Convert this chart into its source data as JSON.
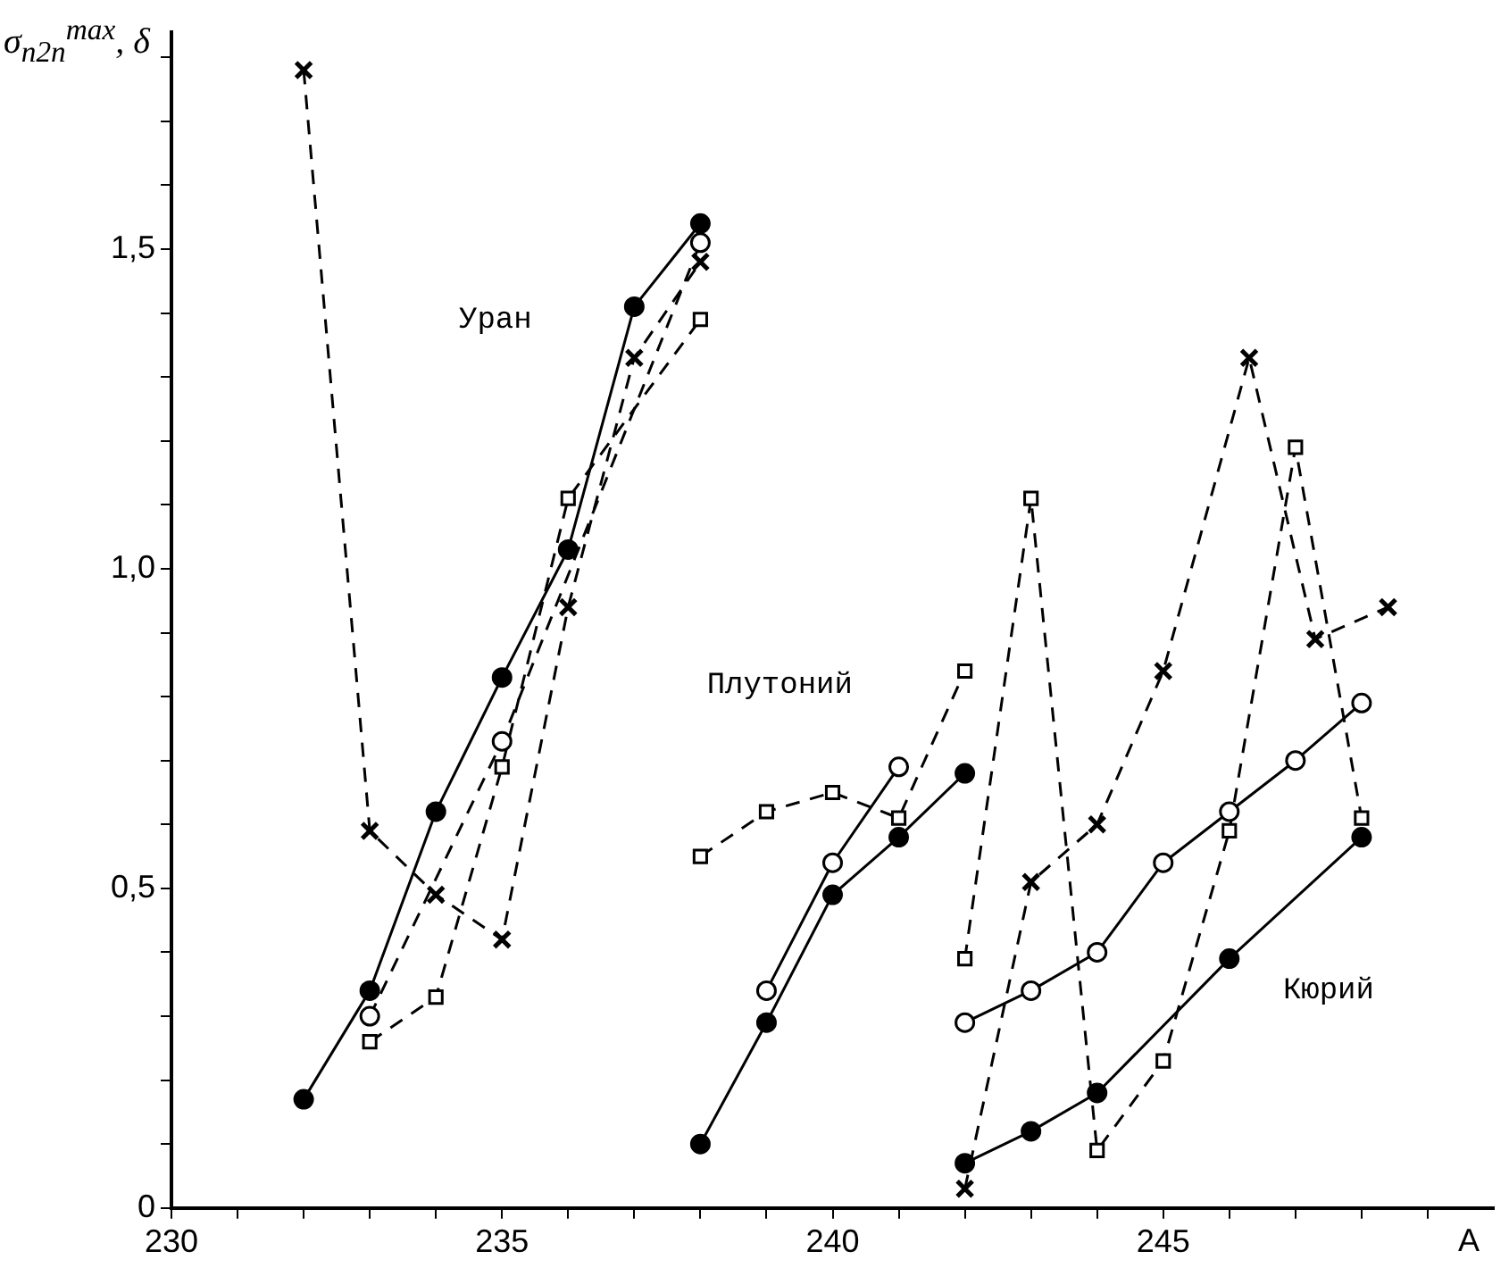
{
  "chart_data": {
    "type": "line",
    "ylabel": "σ$_{n2n}$$^{max}$, δ",
    "xlabel": "A",
    "xlim": [
      230,
      250
    ],
    "ylim": [
      0,
      1.84
    ],
    "xticks": [
      230,
      {
        "value": 231,
        "label": null
      },
      {
        "value": 232,
        "label": null
      },
      {
        "value": 233,
        "label": null
      },
      {
        "value": 234,
        "label": null
      },
      235,
      {
        "value": 236,
        "label": null
      },
      {
        "value": 237,
        "label": null
      },
      {
        "value": 238,
        "label": null
      },
      {
        "value": 239,
        "label": null
      },
      240,
      {
        "value": 241,
        "label": null
      },
      {
        "value": 242,
        "label": null
      },
      {
        "value": 243,
        "label": null
      },
      {
        "value": 244,
        "label": null
      },
      245,
      {
        "value": 246,
        "label": null
      },
      {
        "value": 247,
        "label": null
      },
      {
        "value": 248,
        "label": null
      },
      {
        "value": 249,
        "label": null
      }
    ],
    "yticks": [
      {
        "value": 0,
        "label": "0"
      },
      {
        "value": 0.1,
        "label": null
      },
      {
        "value": 0.2,
        "label": null
      },
      {
        "value": 0.3,
        "label": null
      },
      {
        "value": 0.4,
        "label": null
      },
      {
        "value": 0.5,
        "label": "0,5"
      },
      {
        "value": 0.6,
        "label": null
      },
      {
        "value": 0.7,
        "label": null
      },
      {
        "value": 0.8,
        "label": null
      },
      {
        "value": 0.9,
        "label": null
      },
      {
        "value": 1.0,
        "label": "1,0"
      },
      {
        "value": 1.1,
        "label": null
      },
      {
        "value": 1.2,
        "label": null
      },
      {
        "value": 1.3,
        "label": null
      },
      {
        "value": 1.4,
        "label": null
      },
      {
        "value": 1.5,
        "label": "1,5"
      },
      {
        "value": 1.6,
        "label": null
      },
      {
        "value": 1.7,
        "label": null
      },
      {
        "value": 1.8,
        "label": null
      }
    ],
    "grid": false,
    "legend": false,
    "series": [
      {
        "color": "#000000",
        "marker": "circle",
        "line_style": "solid",
        "x": [
          232,
          233,
          234,
          235,
          236,
          237,
          238
        ],
        "values": [
          0.17,
          0.34,
          0.62,
          0.83,
          1.03,
          1.41,
          1.54
        ]
      },
      {
        "color": "#000000",
        "marker": "circle",
        "line_style": "dashed",
        "x": [
          233,
          235,
          238
        ],
        "values": [
          0.3,
          0.73,
          1.51
        ]
      },
      {
        "color": "#000000",
        "marker": "square",
        "line_style": "dashed",
        "x": [
          233,
          234,
          235,
          236,
          238
        ],
        "values": [
          0.26,
          0.33,
          0.69,
          1.11,
          1.39
        ]
      },
      {
        "color": "#000000",
        "marker": "cross",
        "line_style": "dashed",
        "x": [
          232,
          233,
          234,
          235,
          236,
          237,
          238
        ],
        "values": [
          1.78,
          0.59,
          0.49,
          0.42,
          0.94,
          1.33,
          1.48
        ]
      },
      {
        "color": "#000000",
        "marker": "circle",
        "line_style": "solid",
        "x": [
          238,
          239,
          240,
          241,
          242
        ],
        "values": [
          0.1,
          0.29,
          0.49,
          0.58,
          0.68
        ]
      },
      {
        "color": "#000000",
        "marker": "circle",
        "line_style": "solid",
        "x": [
          239,
          240,
          241
        ],
        "values": [
          0.34,
          0.54,
          0.69
        ]
      },
      {
        "color": "#000000",
        "marker": "square",
        "line_style": "dashed",
        "x": [
          238,
          239,
          240,
          241,
          242
        ],
        "values": [
          0.55,
          0.62,
          0.65,
          0.61,
          0.84
        ]
      },
      {
        "color": "#000000",
        "marker": "circle",
        "line_style": "solid",
        "x": [
          242,
          243,
          244,
          246,
          248
        ],
        "values": [
          0.07,
          0.12,
          0.18,
          0.39,
          0.58
        ]
      },
      {
        "color": "#000000",
        "marker": "circle",
        "line_style": "solid",
        "x": [
          242,
          243,
          244,
          245,
          246,
          247,
          248
        ],
        "values": [
          0.29,
          0.34,
          0.4,
          0.54,
          0.62,
          0.7,
          0.79
        ]
      },
      {
        "color": "#000000",
        "marker": "square",
        "line_style": "dashed",
        "x": [
          242,
          243,
          244,
          245,
          246,
          247,
          248
        ],
        "values": [
          0.39,
          1.11,
          0.09,
          0.23,
          0.59,
          1.19,
          0.61
        ]
      },
      {
        "color": "#000000",
        "marker": "cross",
        "line_style": "dashed",
        "x": [
          242,
          243,
          244,
          245,
          246.3,
          247.3,
          248.4
        ],
        "values": [
          0.03,
          0.51,
          0.6,
          0.84,
          1.33,
          0.89,
          0.94
        ]
      }
    ],
    "annotations": [
      "Уран",
      "Плутоний",
      "Кюрий"
    ]
  }
}
